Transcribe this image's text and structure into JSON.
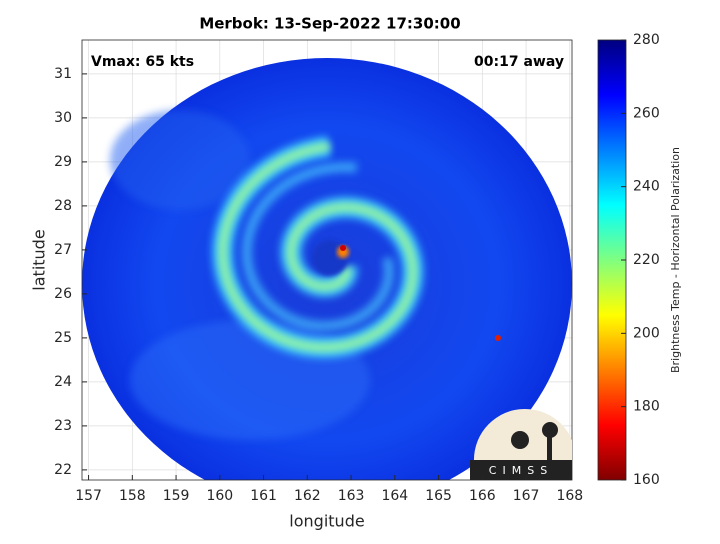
{
  "chart_data": {
    "type": "image",
    "title": "Merbok: 13-Sep-2022 17:30:00",
    "annotations": [
      "Vmax: 65 kts",
      "00:17 away"
    ],
    "xlabel": "longitude",
    "ylabel": "latitude",
    "xlim": [
      156.85,
      168.05
    ],
    "xticks": [
      157,
      158,
      159,
      160,
      161,
      162,
      163,
      164,
      165,
      166,
      167,
      168
    ],
    "ylim": [
      21.77,
      31.77
    ],
    "yticks": [
      22,
      23,
      24,
      25,
      26,
      27,
      28,
      29,
      30,
      31
    ],
    "grid": true,
    "colorbar": {
      "label": "Brightness Temp - Horizontal Polarization",
      "clim": [
        160,
        280
      ],
      "ticks": [
        160,
        180,
        200,
        220,
        240,
        260,
        280
      ],
      "colormap": "jet"
    },
    "logo": "CIMSS"
  }
}
